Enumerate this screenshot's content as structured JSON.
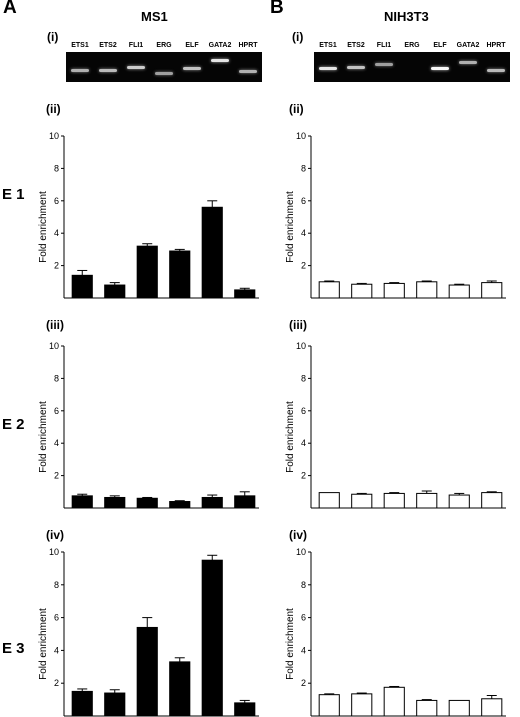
{
  "panels": [
    {
      "letter": "A",
      "title": "MS1",
      "gel": {
        "label": "(i)",
        "lanes": [
          "ETS1",
          "ETS2",
          "FLI1",
          "ERG",
          "ELF",
          "GATA2",
          "HPRT"
        ],
        "band_intensity": [
          0.55,
          0.6,
          0.7,
          0.45,
          0.65,
          0.85,
          0.55
        ],
        "band_offset": [
          0.55,
          0.55,
          0.45,
          0.65,
          0.5,
          0.22,
          0.6
        ]
      },
      "style": "filled",
      "bar_color": "#000000"
    },
    {
      "letter": "B",
      "title": "NIH3T3",
      "gel": {
        "label": "(i)",
        "lanes": [
          "ETS1",
          "ETS2",
          "FLI1",
          "ERG",
          "ELF",
          "GATA2",
          "HPRT"
        ],
        "band_intensity": [
          0.85,
          0.65,
          0.45,
          0.0,
          0.95,
          0.55,
          0.6
        ],
        "band_offset": [
          0.5,
          0.45,
          0.35,
          0.5,
          0.5,
          0.3,
          0.55
        ]
      },
      "style": "open",
      "bar_color": "#ffffff"
    }
  ],
  "rows": [
    {
      "label": "E 1",
      "chart_label": "(ii)"
    },
    {
      "label": "E 2",
      "chart_label": "(iii)"
    },
    {
      "label": "E 3",
      "chart_label": "(iv)"
    }
  ],
  "chart_data": [
    {
      "type": "bar",
      "panel": "A",
      "row": "E 1",
      "label": "(ii)",
      "ylabel": "Fold enrichment",
      "ylim": [
        0,
        10
      ],
      "yticks": [
        2,
        4,
        6,
        8,
        10
      ],
      "categories": [
        "ETS1",
        "ETS2",
        "FLI1",
        "ERG",
        "ELF",
        "GATA2"
      ],
      "values": [
        1.4,
        0.8,
        3.2,
        2.9,
        5.6,
        0.5
      ],
      "errors": [
        0.3,
        0.15,
        0.15,
        0.1,
        0.4,
        0.1
      ]
    },
    {
      "type": "bar",
      "panel": "B",
      "row": "E 1",
      "label": "(ii)",
      "ylabel": "Fold enrichment",
      "ylim": [
        0,
        10
      ],
      "yticks": [
        2,
        4,
        6,
        8,
        10
      ],
      "categories": [
        "ETS1",
        "ETS2",
        "FLI1",
        "ERG",
        "ELF",
        "GATA2"
      ],
      "values": [
        1.0,
        0.85,
        0.9,
        1.0,
        0.8,
        0.95
      ],
      "errors": [
        0.05,
        0.05,
        0.05,
        0.05,
        0.05,
        0.1
      ]
    },
    {
      "type": "bar",
      "panel": "A",
      "row": "E 2",
      "label": "(iii)",
      "ylabel": "Fold enrichment",
      "ylim": [
        0,
        10
      ],
      "yticks": [
        2,
        4,
        6,
        8,
        10
      ],
      "categories": [
        "ETS1",
        "ETS2",
        "FLI1",
        "ERG",
        "ELF",
        "GATA2"
      ],
      "values": [
        0.75,
        0.65,
        0.6,
        0.4,
        0.65,
        0.75
      ],
      "errors": [
        0.1,
        0.1,
        0.05,
        0.05,
        0.15,
        0.25
      ]
    },
    {
      "type": "bar",
      "panel": "B",
      "row": "E 2",
      "label": "(iii)",
      "ylabel": "Fold enrichment",
      "ylim": [
        0,
        10
      ],
      "yticks": [
        2,
        4,
        6,
        8,
        10
      ],
      "categories": [
        "ETS1",
        "ETS2",
        "FLI1",
        "ERG",
        "ELF",
        "GATA2"
      ],
      "values": [
        0.95,
        0.85,
        0.9,
        0.9,
        0.8,
        0.95
      ],
      "errors": [
        0.0,
        0.05,
        0.05,
        0.15,
        0.1,
        0.05
      ]
    },
    {
      "type": "bar",
      "panel": "A",
      "row": "E 3",
      "label": "(iv)",
      "ylabel": "Fold enrichment",
      "ylim": [
        0,
        10
      ],
      "yticks": [
        2,
        4,
        6,
        8,
        10
      ],
      "categories": [
        "ETS1",
        "ETS2",
        "FLI1",
        "ERG",
        "ELF",
        "GATA2"
      ],
      "values": [
        1.5,
        1.4,
        5.4,
        3.3,
        9.5,
        0.8
      ],
      "errors": [
        0.15,
        0.2,
        0.6,
        0.25,
        0.3,
        0.15
      ]
    },
    {
      "type": "bar",
      "panel": "B",
      "row": "E 3",
      "label": "(iv)",
      "ylabel": "Fold enrichment",
      "ylim": [
        0,
        10
      ],
      "yticks": [
        2,
        4,
        6,
        8,
        10
      ],
      "categories": [
        "ETS1",
        "ETS2",
        "FLI1",
        "ERG",
        "ELF",
        "GATA2"
      ],
      "values": [
        1.3,
        1.35,
        1.75,
        0.95,
        0.95,
        1.05
      ],
      "errors": [
        0.05,
        0.05,
        0.05,
        0.05,
        0.0,
        0.2
      ]
    }
  ]
}
